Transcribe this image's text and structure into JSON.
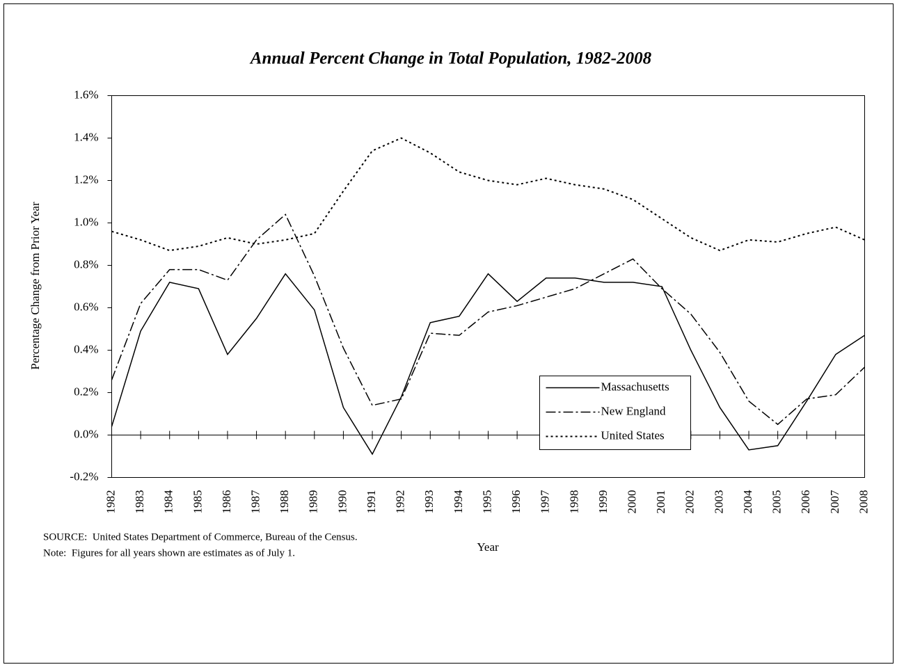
{
  "chart_data": {
    "type": "line",
    "title": "Annual Percent Change in Total Population, 1982-2008",
    "x_label": "Year",
    "y_label": "Percentage Change from Prior Year",
    "categories": [
      "1982",
      "1983",
      "1984",
      "1985",
      "1986",
      "1987",
      "1988",
      "1989",
      "1990",
      "1991",
      "1992",
      "1993",
      "1994",
      "1995",
      "1996",
      "1997",
      "1998",
      "1999",
      "2000",
      "2001",
      "2002",
      "2003",
      "2004",
      "2005",
      "2006",
      "2007",
      "2008"
    ],
    "series": [
      {
        "name": "Massachusetts",
        "color": "#000000",
        "dash": "solid",
        "values": [
          0.04,
          0.49,
          0.72,
          0.69,
          0.38,
          0.55,
          0.76,
          0.59,
          0.13,
          -0.09,
          0.18,
          0.53,
          0.56,
          0.76,
          0.63,
          0.74,
          0.74,
          0.72,
          0.72,
          0.7,
          0.4,
          0.13,
          -0.07,
          -0.05,
          0.16,
          0.38,
          0.47
        ]
      },
      {
        "name": "New England",
        "color": "#000000",
        "dash": "dash-dot",
        "values": [
          0.26,
          0.62,
          0.78,
          0.78,
          0.73,
          0.92,
          1.04,
          0.75,
          0.41,
          0.14,
          0.17,
          0.48,
          0.47,
          0.58,
          0.61,
          0.65,
          0.69,
          0.76,
          0.83,
          0.69,
          0.57,
          0.39,
          0.16,
          0.05,
          0.17,
          0.19,
          0.32
        ]
      },
      {
        "name": "United States",
        "color": "#000000",
        "dash": "dotted",
        "values": [
          0.96,
          0.92,
          0.87,
          0.89,
          0.93,
          0.9,
          0.92,
          0.95,
          1.15,
          1.34,
          1.4,
          1.33,
          1.24,
          1.2,
          1.18,
          1.21,
          1.18,
          1.16,
          1.11,
          1.02,
          0.93,
          0.87,
          0.92,
          0.91,
          0.95,
          0.98,
          0.92
        ]
      }
    ],
    "ylim": [
      -0.2,
      1.6
    ],
    "yticks": [
      {
        "value": -0.2,
        "label": "-0.2%"
      },
      {
        "value": 0,
        "label": "0.0%"
      },
      {
        "value": 0.2,
        "label": "0.2%"
      },
      {
        "value": 0.4,
        "label": "0.4%"
      },
      {
        "value": 0.6,
        "label": "0.6%"
      },
      {
        "value": 0.8,
        "label": "0.8%"
      },
      {
        "value": 1.0,
        "label": "1.0%"
      },
      {
        "value": 1.2,
        "label": "1.2%"
      },
      {
        "value": 1.4,
        "label": "1.4%"
      },
      {
        "value": 1.6,
        "label": "1.6%"
      }
    ],
    "grid": false,
    "notes": [
      "SOURCE:  United States Department of Commerce, Bureau of the Census.",
      "Note:  Figures for all years shown are estimates as of July 1."
    ]
  }
}
